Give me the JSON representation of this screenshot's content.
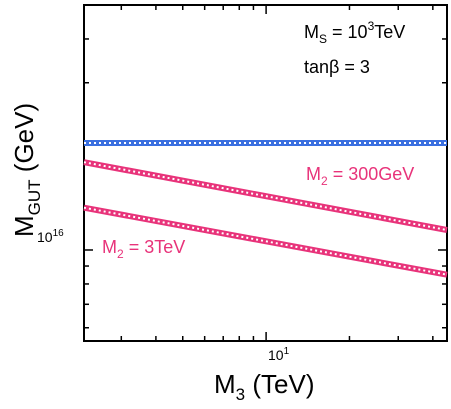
{
  "chart_data": {
    "type": "line",
    "title": "",
    "xlabel": {
      "main": "M",
      "sub": "3",
      "unit": " (TeV)"
    },
    "ylabel": {
      "main": "M",
      "sub": "GUT",
      "unit": " (GeV)"
    },
    "xscale": "log",
    "yscale": "log",
    "xlim": [
      2.2,
      45
    ],
    "ylim": [
      5500000000000000.0,
      5e+16
    ],
    "x_ticks": [
      {
        "value": 10,
        "base": "10",
        "exp": "1"
      }
    ],
    "y_ticks": [
      {
        "value": 1e+16,
        "base": "10",
        "exp": "16"
      }
    ],
    "grid": false,
    "annotations": {
      "ms": {
        "main": "M",
        "sub": "S",
        "eq": " = 10",
        "exp": "3",
        "unit": "TeV"
      },
      "tanb": "tanβ = 3"
    },
    "series": [
      {
        "label": {
          "main": "",
          "sub": "",
          "rest": ""
        },
        "color": "#3a6fe0",
        "x": [
          2.2,
          45
        ],
        "y": [
          2.02e+16,
          2.02e+16
        ]
      },
      {
        "label": {
          "main": "M",
          "sub": "2",
          "rest": " = 300GeV"
        },
        "color": "#e8337a",
        "x": [
          2.2,
          45
        ],
        "y": [
          1.78e+16,
          1.14e+16
        ]
      },
      {
        "label": {
          "main": "M",
          "sub": "2",
          "rest": " = 3TeV"
        },
        "color": "#e8337a",
        "x": [
          2.2,
          45
        ],
        "y": [
          1.32e+16,
          8500000000000000.0
        ]
      }
    ]
  }
}
